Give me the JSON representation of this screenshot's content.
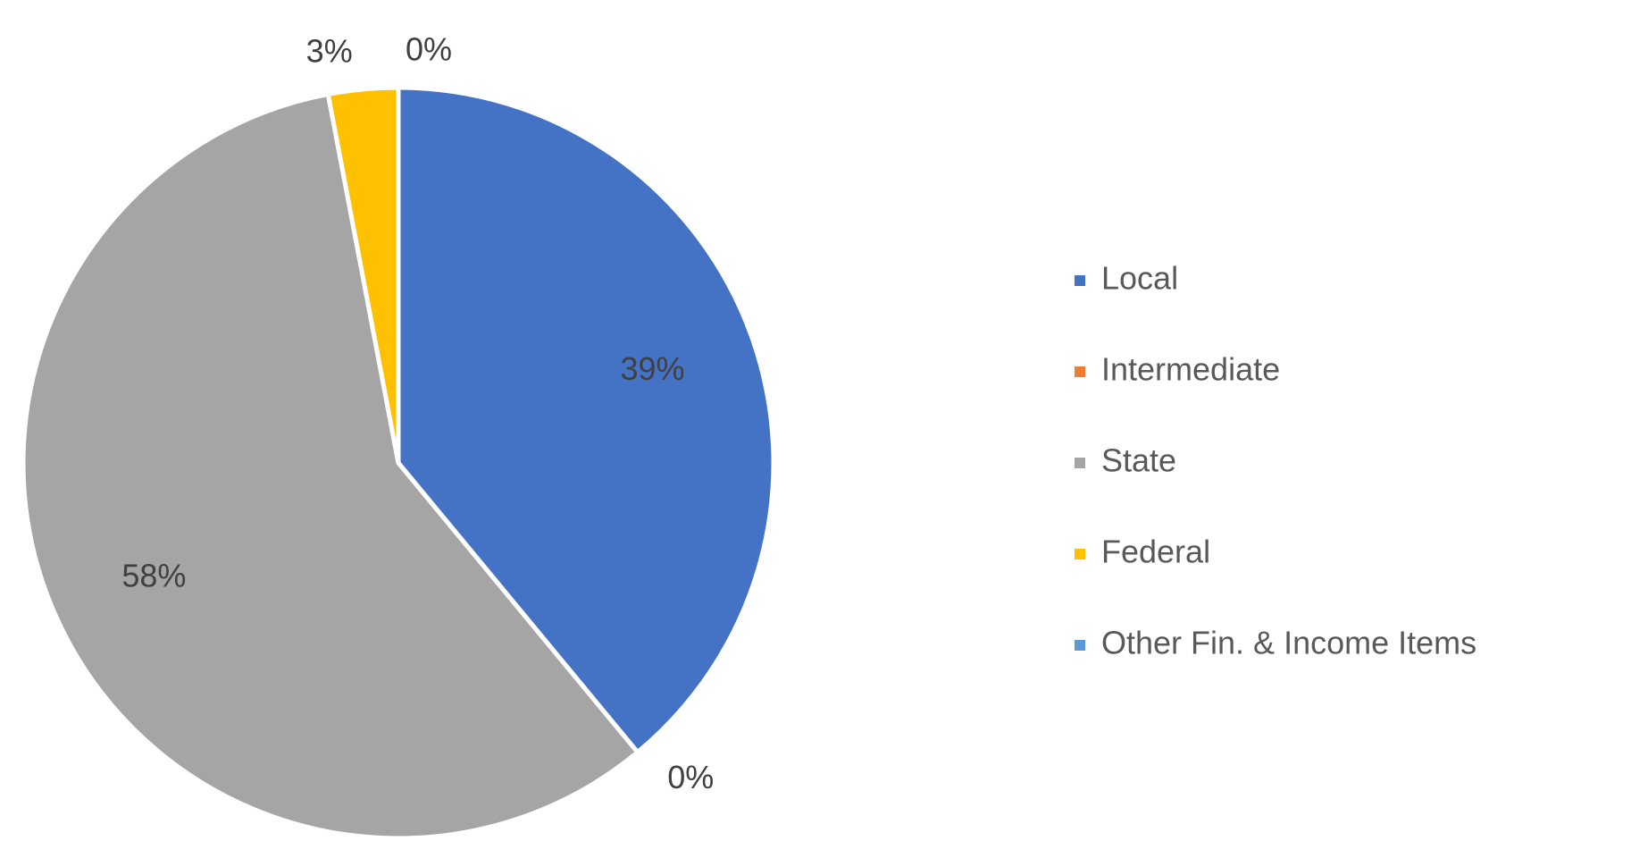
{
  "chart_data": {
    "type": "pie",
    "categories": [
      "Local",
      "Intermediate",
      "State",
      "Federal",
      "Other Fin. & Income Items"
    ],
    "values": [
      39,
      0,
      58,
      3,
      0
    ],
    "value_labels": [
      "39%",
      "0%",
      "58%",
      "3%",
      "0%"
    ],
    "colors": [
      "#4472c4",
      "#ed7d31",
      "#a5a5a5",
      "#ffc000",
      "#5b9bd5"
    ],
    "legend": "right"
  }
}
